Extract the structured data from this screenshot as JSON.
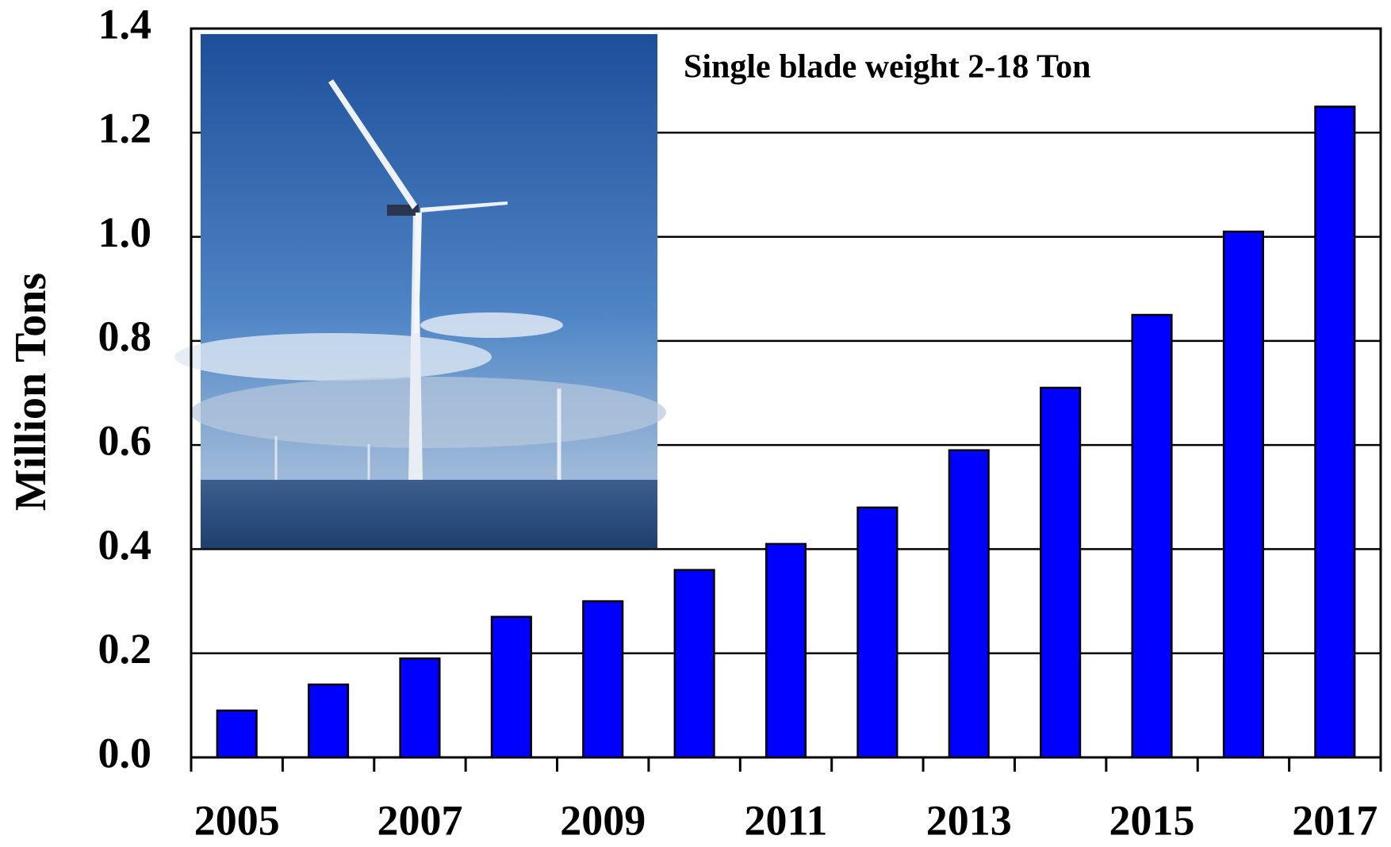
{
  "chart_data": {
    "type": "bar",
    "y_label": "Million Tons",
    "annotation": "Single blade weight 2-18 Ton",
    "categories": [
      "2005",
      null,
      "2007",
      null,
      "2009",
      null,
      "2011",
      null,
      "2013",
      null,
      "2015",
      null,
      "2017"
    ],
    "values": [
      0.09,
      0.14,
      0.19,
      0.27,
      0.3,
      0.36,
      0.41,
      0.48,
      0.59,
      0.71,
      0.85,
      1.01,
      1.25
    ],
    "color": "#0000ff",
    "ylim": [
      0,
      1.4
    ],
    "yticks": [
      {
        "value": 0,
        "label": "0.0"
      },
      0.2,
      0.4,
      0.6,
      0.8,
      {
        "value": 1,
        "label": "1.0"
      },
      1.2,
      1.4
    ],
    "grid": true
  }
}
